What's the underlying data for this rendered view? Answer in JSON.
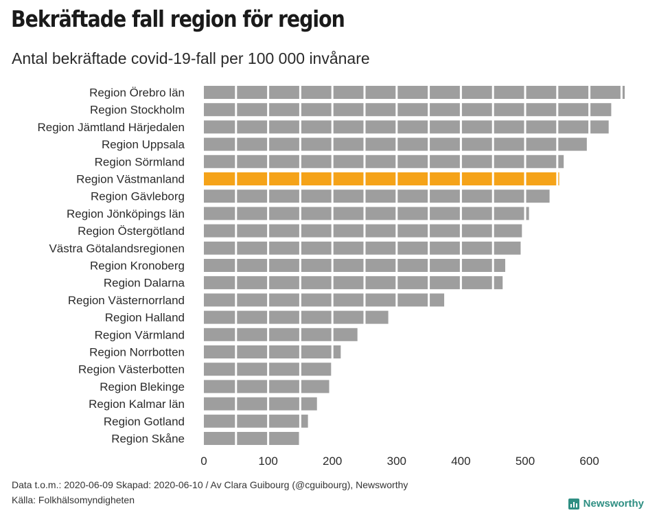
{
  "title": "Bekräftade fall region för region",
  "subtitle": "Antal bekräftade covid-19-fall per 100 000 invånare",
  "footer": {
    "line1": "Data t.o.m.: 2020-06-09 Skapad: 2020-06-10 / Av Clara Guibourg (@cguibourg), Newsworthy",
    "line2": "Källa: Folkhälsomyndigheten"
  },
  "brand": {
    "name": "Newsworthy",
    "color": "#2f8f83"
  },
  "chart_data": {
    "type": "bar",
    "orientation": "horizontal",
    "categories": [
      "Region Örebro län",
      "Region Stockholm",
      "Region Jämtland Härjedalen",
      "Region Uppsala",
      "Region Sörmland",
      "Region Västmanland",
      "Region Gävleborg",
      "Region Jönköpings län",
      "Region Östergötland",
      "Västra Götalandsregionen",
      "Region Kronoberg",
      "Region Dalarna",
      "Region Västernorrland",
      "Region Halland",
      "Region Värmland",
      "Region Norrbotten",
      "Region Västerbotten",
      "Region Blekinge",
      "Region Kalmar län",
      "Region Gotland",
      "Region Skåne"
    ],
    "values": [
      655,
      634,
      630,
      596,
      560,
      553,
      538,
      506,
      495,
      493,
      469,
      465,
      374,
      287,
      239,
      213,
      198,
      195,
      176,
      162,
      148
    ],
    "highlight": "Region Västmanland",
    "xlim": [
      0,
      660
    ],
    "xticks": [
      0,
      100,
      200,
      300,
      400,
      500,
      600
    ],
    "grid": true,
    "colors": {
      "bar": "#9e9e9e",
      "highlight": "#f5a319",
      "gridline": "#ffffff"
    }
  }
}
